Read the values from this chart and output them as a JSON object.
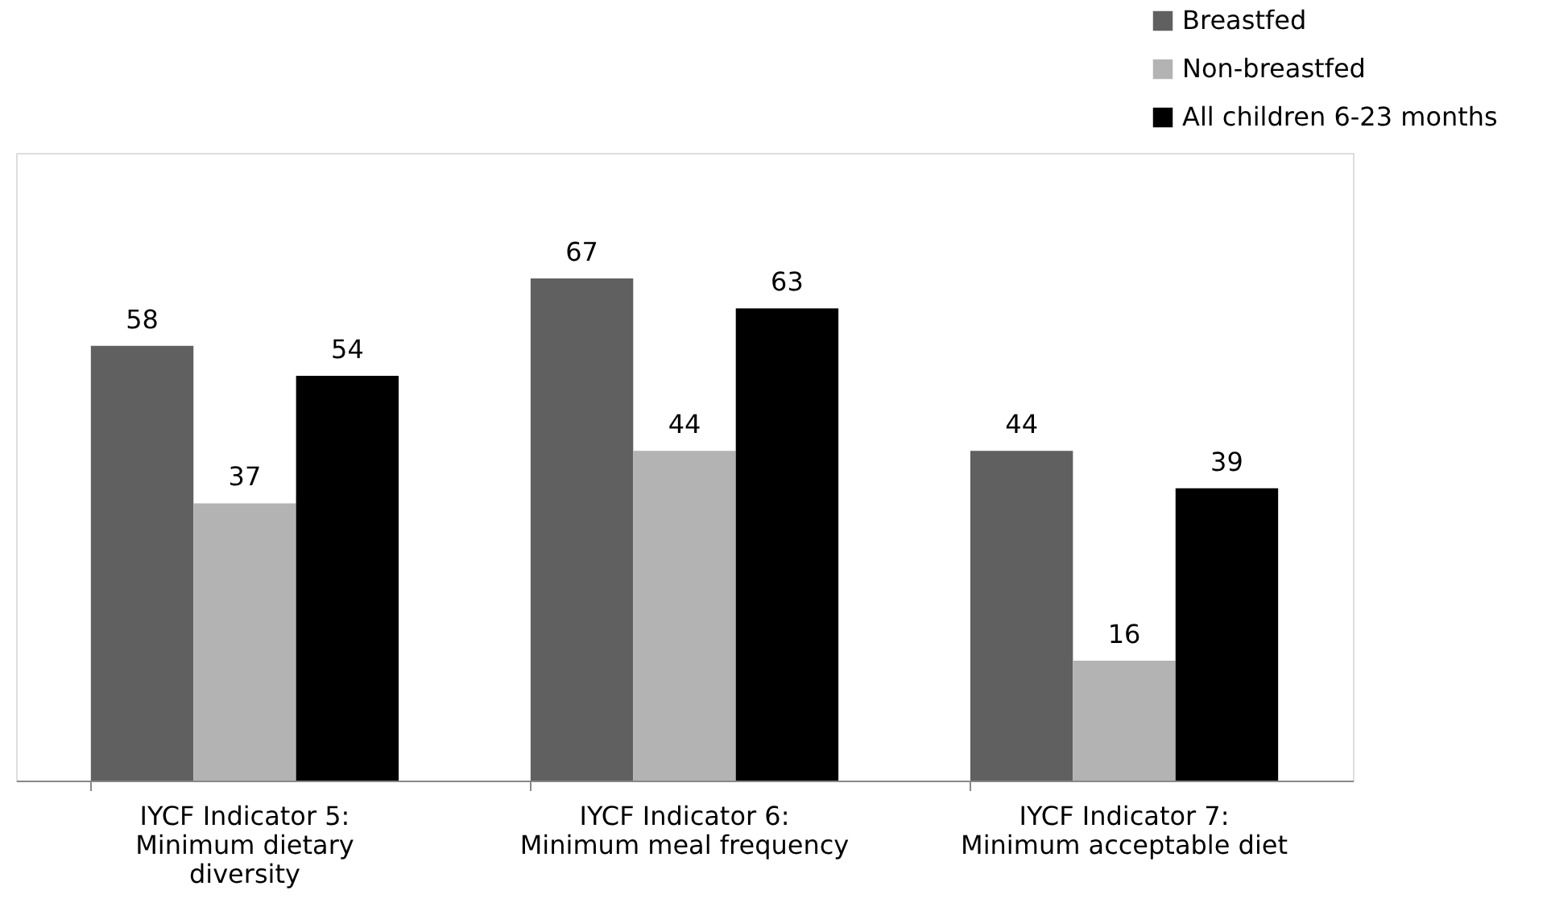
{
  "chart_data": {
    "type": "bar",
    "categories": [
      "IYCF Indicator 5: Minimum dietary diversity",
      "IYCF Indicator 6: Minimum meal frequency",
      "IYCF Indicator 7: Minimum acceptable diet"
    ],
    "series": [
      {
        "name": "Breastfed",
        "color": "#606060",
        "values": [
          58,
          67,
          44
        ]
      },
      {
        "name": "Non-breastfed",
        "color": "#b3b3b3",
        "values": [
          37,
          44,
          16
        ]
      },
      {
        "name": "All children 6-23 months",
        "color": "#000000",
        "values": [
          54,
          63,
          39
        ]
      }
    ],
    "data_labels": true,
    "legend": "top right",
    "grid": false
  }
}
